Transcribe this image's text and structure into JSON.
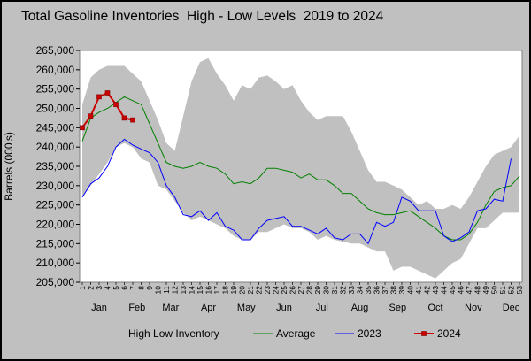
{
  "chart_data": {
    "type": "line",
    "title": "Total Gasoline Inventories  High - Low Levels  2019 to 2024",
    "ylabel": "Barrels (000's)",
    "ylim": [
      205000,
      265000
    ],
    "ytick_step": 5000,
    "y_tick_labels": [
      "205,000",
      "210,000",
      "215,000",
      "220,000",
      "225,000",
      "230,000",
      "235,000",
      "240,000",
      "245,000",
      "250,000",
      "255,000",
      "260,000",
      "265,000"
    ],
    "week_labels": [
      "1",
      "2",
      "3",
      "4",
      "5",
      "6",
      "7",
      "8",
      "9",
      "10",
      "11",
      "12",
      "13",
      "14",
      "15",
      "16",
      "17",
      "18",
      "19",
      "20",
      "21",
      "22",
      "23",
      "24",
      "25",
      "26",
      "27",
      "28",
      "29",
      "30",
      "31",
      "32",
      "33",
      "34",
      "35",
      "36",
      "37",
      "38",
      "39",
      "40",
      "41",
      "42",
      "43",
      "44",
      "45",
      "46",
      "47",
      "48",
      "49",
      "50",
      "51",
      "52",
      "53"
    ],
    "months": [
      {
        "label": "Jan",
        "center": 3
      },
      {
        "label": "Feb",
        "center": 7.5
      },
      {
        "label": "Mar",
        "center": 11.5
      },
      {
        "label": "Apr",
        "center": 16
      },
      {
        "label": "May",
        "center": 20.5
      },
      {
        "label": "Jun",
        "center": 25
      },
      {
        "label": "Jul",
        "center": 29.5
      },
      {
        "label": "Aug",
        "center": 34
      },
      {
        "label": "Sep",
        "center": 38.5
      },
      {
        "label": "Oct",
        "center": 43
      },
      {
        "label": "Nov",
        "center": 47.5
      },
      {
        "label": "Dec",
        "center": 52
      }
    ],
    "series": [
      {
        "name": "High Low Inventory",
        "kind": "band",
        "color": "#c0c0c0",
        "high": [
          251000,
          258000,
          260000,
          261000,
          261000,
          261000,
          259000,
          257000,
          252000,
          247000,
          241000,
          239000,
          248000,
          257000,
          262000,
          263000,
          259000,
          256000,
          252000,
          256000,
          255000,
          258000,
          258500,
          257000,
          255000,
          256000,
          252000,
          249000,
          247000,
          248000,
          248000,
          248000,
          244000,
          239000,
          234000,
          231000,
          231000,
          230000,
          229000,
          227000,
          225000,
          226000,
          224000,
          224000,
          225000,
          224000,
          227000,
          231000,
          235000,
          238000,
          239000,
          240000,
          243000
        ],
        "low": [
          227000,
          230000,
          233000,
          236000,
          240000,
          241000,
          240000,
          237000,
          236000,
          230000,
          229000,
          226000,
          223000,
          221000,
          222000,
          221000,
          220000,
          219000,
          217000,
          216000,
          216000,
          218000,
          218000,
          219000,
          220000,
          219000,
          219000,
          218000,
          216000,
          217000,
          216000,
          215500,
          215000,
          215000,
          214000,
          213000,
          213000,
          208000,
          209000,
          209000,
          208000,
          207000,
          206000,
          208000,
          210000,
          211000,
          215000,
          219000,
          219000,
          221000,
          223000,
          223000,
          223000
        ]
      },
      {
        "name": "Average",
        "color": "#008000",
        "values": [
          241500,
          247500,
          249000,
          250000,
          251500,
          253000,
          252000,
          251000,
          246000,
          241000,
          236000,
          235000,
          234500,
          235000,
          236000,
          235000,
          234500,
          233000,
          230500,
          231000,
          230500,
          232000,
          234500,
          234500,
          234000,
          233500,
          232000,
          233000,
          231500,
          231500,
          230000,
          228000,
          228000,
          226000,
          224000,
          223000,
          222500,
          222500,
          223000,
          223500,
          222000,
          220500,
          219000,
          217000,
          216000,
          216000,
          217500,
          220500,
          225000,
          228500,
          229500,
          230000,
          232500
        ]
      },
      {
        "name": "2023",
        "color": "#0000ff",
        "values": [
          227000,
          230500,
          232000,
          235000,
          240000,
          242000,
          240500,
          239500,
          238500,
          236000,
          230000,
          227000,
          222500,
          222000,
          223500,
          221000,
          223000,
          219500,
          218500,
          216000,
          216000,
          219000,
          221000,
          221500,
          222000,
          219500,
          219500,
          218500,
          217500,
          219000,
          216500,
          216000,
          217500,
          217500,
          215000,
          220500,
          219500,
          220500,
          227000,
          226000,
          223500,
          223500,
          223500,
          217000,
          215500,
          216500,
          218000,
          223500,
          224000,
          226500,
          226000,
          237000
        ]
      },
      {
        "name": "2024",
        "color": "#cc0000",
        "values": [
          245000,
          248000,
          253000,
          254000,
          251000,
          247500,
          247000
        ]
      }
    ],
    "legend_position": "bottom",
    "grid": false
  }
}
